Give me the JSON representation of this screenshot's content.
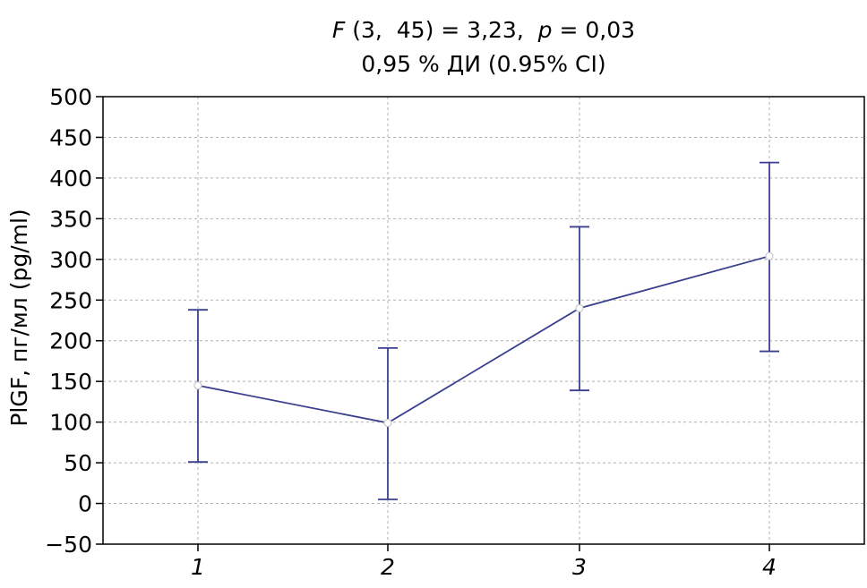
{
  "chart_data": {
    "type": "line",
    "title_line1": {
      "f_symbol": "F",
      "f_args": " (3,  45) = 3,23,  ",
      "p_symbol": "p",
      "p_value": " = 0,03"
    },
    "subtitle": "0,95 % ДИ  (0.95% CI)",
    "xlabel": "",
    "ylabel": "PlGF, пг/мл (pg/ml)",
    "categories": [
      "1",
      "2",
      "3",
      "4"
    ],
    "ylim": [
      -50,
      500
    ],
    "yticks": [
      -50,
      0,
      50,
      100,
      150,
      200,
      250,
      300,
      350,
      400,
      450,
      500
    ],
    "ytick_labels": [
      "−50",
      "0",
      "50",
      "100",
      "150",
      "200",
      "250",
      "300",
      "350",
      "400",
      "450",
      "500"
    ],
    "grid": true,
    "series": [
      {
        "values": [
          145,
          99,
          240,
          304
        ],
        "ci_low": [
          51,
          5,
          139,
          187
        ],
        "ci_high": [
          238,
          191,
          340,
          419
        ]
      }
    ],
    "colors": {
      "line": "#3a3f8f",
      "marker_fill": "#ffffff",
      "marker_edge": "#c8c8c8",
      "grid": "#b0b0b0",
      "axis": "#000000"
    }
  }
}
